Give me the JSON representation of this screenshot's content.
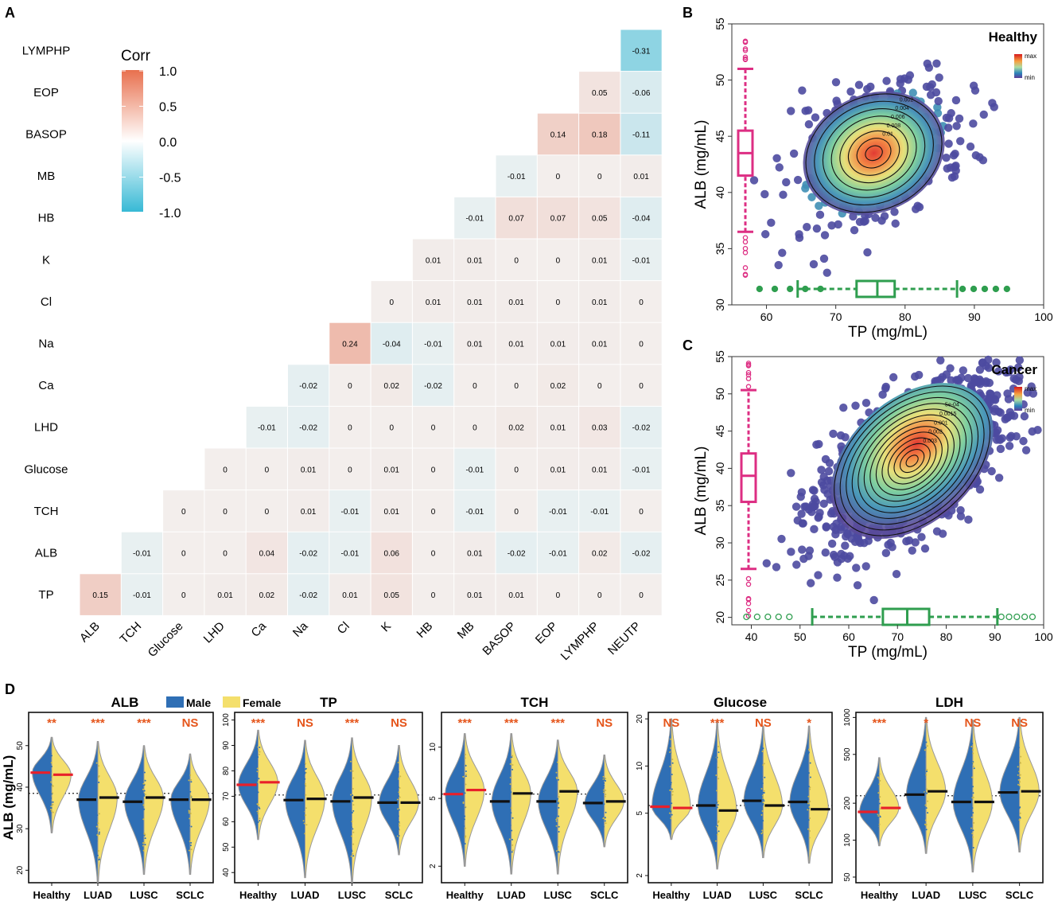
{
  "panel_labels": {
    "a": "A",
    "b": "B",
    "c": "C",
    "d": "D"
  },
  "colors": {
    "pos": "#e8704e",
    "neg": "#37b9d5",
    "pink": "#dd2e83",
    "green": "#2f9e4f",
    "male": "#2f6fb5",
    "female": "#f4df6c",
    "sig": "#e5551b",
    "red_line": "#e8202a"
  },
  "chart_data": [
    {
      "panel": "A",
      "type": "heatmap",
      "rows": [
        "LYMPHP",
        "EOP",
        "BASOP",
        "MB",
        "HB",
        "K",
        "Cl",
        "Na",
        "Ca",
        "LHD",
        "Glucose",
        "TCH",
        "ALB",
        "TP"
      ],
      "columns": [
        "ALB",
        "TCH",
        "Glucose",
        "LHD",
        "Ca",
        "Na",
        "Cl",
        "K",
        "HB",
        "MB",
        "BASOP",
        "EOP",
        "LYMPHP",
        "NEUTP"
      ],
      "values": [
        [
          null,
          null,
          null,
          null,
          null,
          null,
          null,
          null,
          null,
          null,
          null,
          null,
          null,
          -0.31
        ],
        [
          null,
          null,
          null,
          null,
          null,
          null,
          null,
          null,
          null,
          null,
          null,
          null,
          0.05,
          -0.06
        ],
        [
          null,
          null,
          null,
          null,
          null,
          null,
          null,
          null,
          null,
          null,
          null,
          0.14,
          0.18,
          -0.11
        ],
        [
          null,
          null,
          null,
          null,
          null,
          null,
          null,
          null,
          null,
          null,
          -0.01,
          0,
          0,
          0.01
        ],
        [
          null,
          null,
          null,
          null,
          null,
          null,
          null,
          null,
          null,
          -0.01,
          0.07,
          0.07,
          0.05,
          -0.04
        ],
        [
          null,
          null,
          null,
          null,
          null,
          null,
          null,
          null,
          0.01,
          0.01,
          0,
          0,
          0.01,
          -0.01
        ],
        [
          null,
          null,
          null,
          null,
          null,
          null,
          null,
          0,
          0.01,
          0.01,
          0.01,
          0,
          0.01,
          0
        ],
        [
          null,
          null,
          null,
          null,
          null,
          null,
          0.24,
          -0.04,
          -0.01,
          0.01,
          0.01,
          0.01,
          0.01,
          0
        ],
        [
          null,
          null,
          null,
          null,
          null,
          -0.02,
          0,
          0.02,
          -0.02,
          0,
          0,
          0.02,
          0,
          0
        ],
        [
          null,
          null,
          null,
          null,
          -0.01,
          -0.02,
          0,
          0,
          0,
          0,
          0.02,
          0.01,
          0.03,
          -0.02
        ],
        [
          null,
          null,
          null,
          0,
          0,
          0.01,
          0,
          0.01,
          0,
          -0.01,
          0,
          0.01,
          0.01,
          -0.01
        ],
        [
          null,
          null,
          0,
          0,
          0,
          0.01,
          -0.01,
          0.01,
          0,
          -0.01,
          0,
          -0.01,
          -0.01,
          0
        ],
        [
          null,
          -0.01,
          0,
          0,
          0.04,
          -0.02,
          -0.01,
          0.06,
          0,
          0.01,
          -0.02,
          -0.01,
          0.02,
          -0.02
        ],
        [
          0.15,
          -0.01,
          0,
          0.01,
          0.02,
          -0.02,
          0.01,
          0.05,
          0,
          0.01,
          0.01,
          0,
          0,
          0
        ]
      ],
      "legend": {
        "title": "Corr",
        "ticks": [
          "1.0",
          "0.5",
          "0.0",
          "-0.5",
          "-1.0"
        ],
        "range": [
          -1,
          1
        ]
      }
    },
    {
      "panel": "B",
      "type": "scatter",
      "title": "Healthy",
      "xlabel": "TP (mg/mL)",
      "ylabel": "ALB (mg/mL)",
      "xlim": [
        55,
        100
      ],
      "ylim": [
        30,
        55
      ],
      "xticks": [
        "60",
        "70",
        "80",
        "90",
        "100"
      ],
      "yticks": [
        "30",
        "35",
        "40",
        "45",
        "50",
        "55"
      ],
      "density_legend": [
        "max",
        "min"
      ],
      "density_peak": {
        "x": 75.5,
        "y": 43.5
      },
      "contour_labels": [
        "0.002",
        "0.004",
        "0.006",
        "0.008",
        "0.01"
      ],
      "boxplot_y": {
        "whisker_low": 36.5,
        "q1": 41.5,
        "median": 43.5,
        "q3": 45.5,
        "whisker_high": 51
      },
      "boxplot_x": {
        "whisker_low": 64.5,
        "q1": 73,
        "median": 76,
        "q3": 78.5,
        "whisker_high": 87.5
      }
    },
    {
      "panel": "C",
      "type": "scatter",
      "title": "Cancer",
      "xlabel": "TP (mg/mL)",
      "ylabel": "ALB (mg/mL)",
      "xlim": [
        36,
        100
      ],
      "ylim": [
        19,
        55
      ],
      "xticks": [
        "40",
        "50",
        "60",
        "70",
        "80",
        "90",
        "100"
      ],
      "yticks": [
        "20",
        "25",
        "30",
        "35",
        "40",
        "45",
        "50",
        "55"
      ],
      "density_legend": [
        "max",
        "min"
      ],
      "density_peak": {
        "x": 73,
        "y": 41
      },
      "contour_labels": [
        "5e-04",
        "0.0015",
        "0.001",
        "0.002",
        "0.003"
      ],
      "boxplot_y": {
        "whisker_low": 26.5,
        "q1": 35.5,
        "median": 39,
        "q3": 42,
        "whisker_high": 50.5
      },
      "boxplot_x": {
        "whisker_low": 52.5,
        "q1": 67,
        "median": 72,
        "q3": 76.5,
        "whisker_high": 90.5
      }
    },
    {
      "panel": "D",
      "type": "violin",
      "ylabel": "ALB (mg/mL)",
      "legend": [
        "Male",
        "Female"
      ],
      "categories": [
        "Healthy",
        "LUAD",
        "LUSC",
        "SCLC"
      ],
      "subplots": [
        {
          "title": "ALB",
          "scale": "linear",
          "yrange": [
            17,
            58
          ],
          "yticks": [
            "20",
            "30",
            "40",
            "50"
          ],
          "ref_line": 38.5,
          "significance": [
            "**",
            "***",
            "***",
            "NS"
          ],
          "male_median": [
            43.5,
            37,
            36.5,
            37
          ],
          "female_median": [
            43,
            37.5,
            37.5,
            37
          ],
          "range_low": [
            29,
            17,
            19,
            19
          ],
          "range_high": [
            52,
            51,
            50,
            48
          ],
          "highlight": "Healthy"
        },
        {
          "title": "TP",
          "scale": "linear",
          "yrange": [
            36,
            103
          ],
          "yticks": [
            "40",
            "50",
            "60",
            "70",
            "80",
            "90",
            "100"
          ],
          "ref_line": 70.5,
          "significance": [
            "***",
            "NS",
            "***",
            "NS"
          ],
          "male_median": [
            74.5,
            68.5,
            68,
            67.5
          ],
          "female_median": [
            75.5,
            69,
            69.5,
            67.5
          ],
          "range_low": [
            53,
            38,
            36,
            47
          ],
          "range_high": [
            96,
            92,
            93,
            90
          ],
          "highlight": "Healthy"
        },
        {
          "title": "TCH",
          "scale": "log",
          "yrange": [
            1.6,
            16
          ],
          "yticks": [
            "2",
            "5",
            "10"
          ],
          "ref_line": 5.3,
          "significance": [
            "***",
            "***",
            "***",
            "NS"
          ],
          "male_median": [
            5.3,
            4.8,
            4.8,
            4.7
          ],
          "female_median": [
            5.6,
            5.35,
            5.5,
            4.8
          ],
          "range_low": [
            2.0,
            1.8,
            1.8,
            2.6
          ],
          "range_high": [
            12,
            12,
            11,
            9
          ],
          "highlight": "Healthy"
        },
        {
          "title": "Glucose",
          "scale": "log",
          "yrange": [
            1.8,
            22
          ],
          "yticks": [
            "2",
            "5",
            "10",
            "20"
          ],
          "ref_line": 5.6,
          "significance": [
            "NS",
            "***",
            "NS",
            "*"
          ],
          "male_median": [
            5.5,
            5.6,
            6.0,
            5.9
          ],
          "female_median": [
            5.4,
            5.2,
            5.6,
            5.3
          ],
          "range_low": [
            3.4,
            2.2,
            2.6,
            2.4
          ],
          "range_high": [
            20,
            19,
            18,
            18
          ],
          "highlight": "Healthy"
        },
        {
          "title": "LDH",
          "scale": "log",
          "yrange": [
            45,
            1100
          ],
          "yticks": [
            "50",
            "100",
            "200",
            "500",
            "1000"
          ],
          "ref_line": 230,
          "significance": [
            "***",
            "*",
            "NS",
            "NS"
          ],
          "male_median": [
            170,
            235,
            205,
            245
          ],
          "female_median": [
            183,
            250,
            205,
            250
          ],
          "range_low": [
            90,
            78,
            55,
            80
          ],
          "range_high": [
            470,
            1000,
            950,
            1000
          ],
          "highlight": "Healthy"
        }
      ]
    }
  ]
}
